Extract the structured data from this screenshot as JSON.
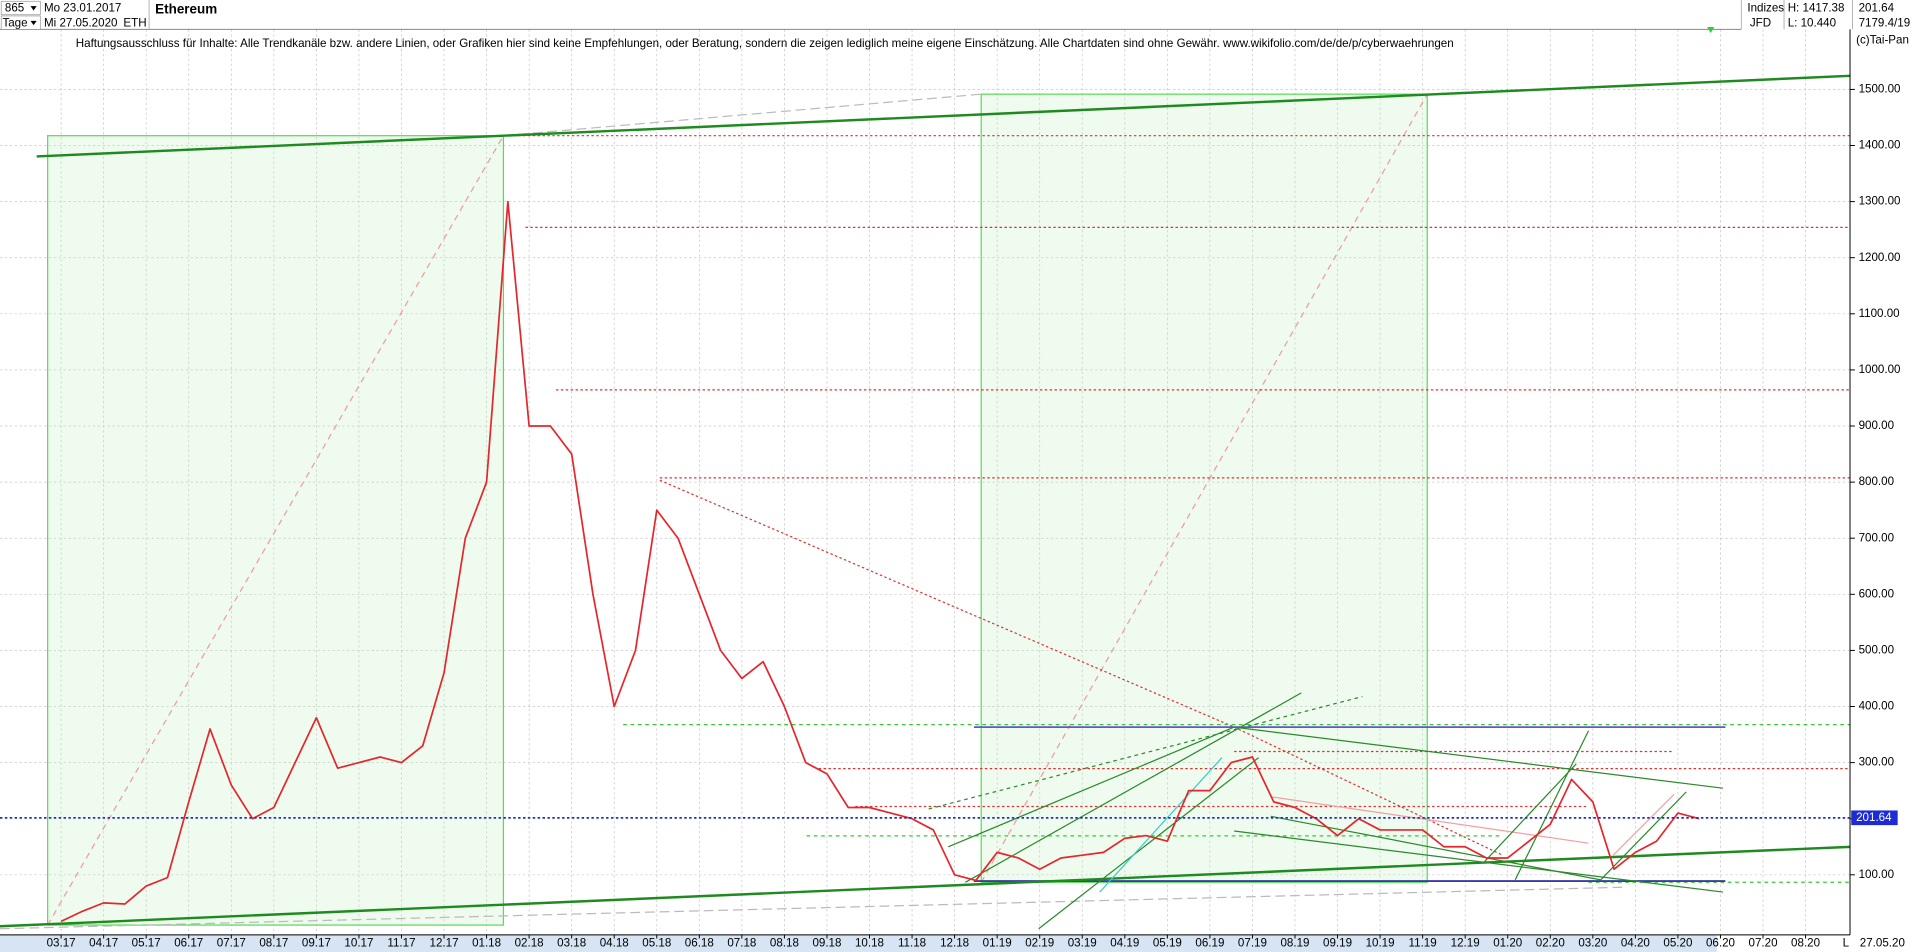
{
  "header": {
    "bars": "865",
    "start_date": "Mo 23.01.2017",
    "period": "Tage",
    "end_date": "Mi 27.05.2020",
    "symbol": "ETH",
    "name": "Ethereum",
    "group": "Indizes",
    "source": "JFD",
    "high": "H: 1417.38",
    "low": "L: 10.440",
    "last": "201.64",
    "volume": "7179.4/19",
    "copyright": "(c)Tai-Pan",
    "disclaimer": "Haftungsausschluss für Inhalte: Alle Trendkanäle bzw. andere Linien, oder Grafiken hier sind keine Empfehlungen, oder Beratung, sondern die zeigen lediglich meine eigene Einschätzung. Alle Chartdaten sind ohne Gewähr.  www.wikifolio.com/de/de/p/cyberwaehrungen"
  },
  "chart_data": {
    "type": "line",
    "title": "Ethereum",
    "categories": [
      "03.17",
      null,
      "04.17",
      null,
      "05.17",
      null,
      "06.17",
      null,
      "07.17",
      null,
      "08.17",
      null,
      "09.17",
      null,
      "10.17",
      null,
      "11.17",
      null,
      "12.17",
      null,
      "01.18",
      null,
      "02.18",
      null,
      "03.18",
      null,
      "04.18",
      null,
      "05.18",
      null,
      "06.18",
      null,
      "07.18",
      null,
      "08.18",
      null,
      "09.18",
      null,
      "10.18",
      null,
      "11.18",
      null,
      "12.18",
      null,
      "01.19",
      null,
      "02.19",
      null,
      "03.19",
      null,
      "04.19",
      null,
      "05.19",
      null,
      "06.19",
      null,
      "07.19",
      null,
      "08.19",
      null,
      "09.19",
      null,
      "10.19",
      null,
      "11.19",
      null,
      "12.19",
      null,
      "01.20",
      null,
      "02.20",
      null,
      "03.20",
      null,
      "04.20",
      null,
      "05.20",
      null,
      "06.20",
      null,
      "07.20",
      null,
      "08.20",
      null
    ],
    "values": [
      17,
      35,
      50,
      48,
      80,
      95,
      230,
      360,
      260,
      200,
      220,
      300,
      380,
      290,
      300,
      310,
      300,
      330,
      460,
      700,
      800,
      1300,
      900,
      900,
      850,
      600,
      400,
      500,
      750,
      700,
      600,
      500,
      450,
      480,
      400,
      300,
      280,
      220,
      220,
      210,
      200,
      180,
      100,
      90,
      140,
      130,
      110,
      130,
      135,
      140,
      165,
      170,
      160,
      250,
      250,
      300,
      310,
      230,
      220,
      200,
      170,
      200,
      180,
      180,
      180,
      150,
      150,
      130,
      130,
      160,
      190,
      270,
      230,
      110,
      140,
      160,
      210,
      200,
      null,
      null,
      null,
      null,
      null,
      null
    ],
    "color": "#e5262b",
    "ylim": [
      -7,
      1607
    ],
    "yticks": [
      {
        "value": 100,
        "label": "100.00"
      },
      {
        "value": 200,
        "label": "200.00"
      },
      {
        "value": 300,
        "label": "300.00"
      },
      {
        "value": 400,
        "label": "400.00"
      },
      {
        "value": 500,
        "label": "500.00"
      },
      {
        "value": 600,
        "label": "600.00"
      },
      {
        "value": 700,
        "label": "700.00"
      },
      {
        "value": 800,
        "label": "800.00"
      },
      {
        "value": 900,
        "label": "900.00"
      },
      {
        "value": 1000,
        "label": "1000.00"
      },
      {
        "value": 1100,
        "label": "1100.00"
      },
      {
        "value": 1200,
        "label": "1200.00"
      },
      {
        "value": 1300,
        "label": "1300.00"
      },
      {
        "value": 1400,
        "label": "1400.00"
      },
      {
        "value": 1500,
        "label": "1500.00"
      }
    ],
    "last_value": 201.64,
    "last_color": "#1c2bd6",
    "date_label": "27.05.20",
    "scale_label": "L",
    "grid": true
  }
}
